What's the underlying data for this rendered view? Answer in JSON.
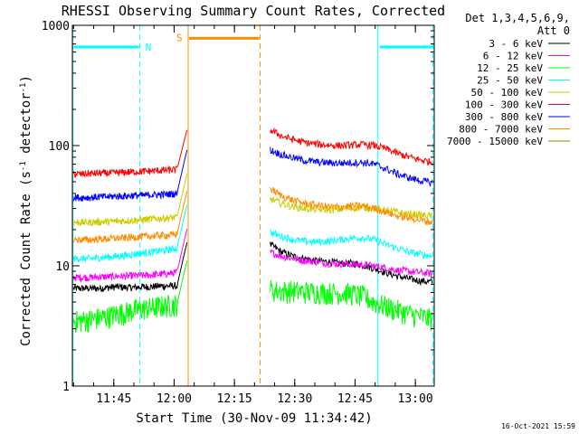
{
  "chart_data": {
    "type": "line",
    "title": "RHESSI Observing Summary Count Rates, Corrected",
    "xlabel": "Start Time (30-Nov-09 11:34:42)",
    "ylabel_main": "Corrected Count Rate (s",
    "ylabel_sup1": "-1",
    "ylabel_mid": " detector",
    "ylabel_sup2": "-1",
    "ylabel_end": ")",
    "y_scale": "log",
    "ylim": [
      1,
      1000
    ],
    "xlim_minutes": [
      0,
      90
    ],
    "y_ticks": [
      {
        "value": 1,
        "label": "1"
      },
      {
        "value": 10,
        "label": "10"
      },
      {
        "value": 100,
        "label": "100"
      },
      {
        "value": 1000,
        "label": "1000"
      }
    ],
    "x_ticks": [
      {
        "minute": 10.3,
        "label": "11:45"
      },
      {
        "minute": 25.3,
        "label": "12:00"
      },
      {
        "minute": 40.3,
        "label": "12:15"
      },
      {
        "minute": 55.3,
        "label": "12:30"
      },
      {
        "minute": 70.3,
        "label": "12:45"
      },
      {
        "minute": 85.3,
        "label": "13:00"
      }
    ],
    "legend_header": [
      "Det 1,3,4,5,6,9,",
      "Att 0"
    ],
    "legend_placement": "right",
    "timestamp": "16-Oct-2021 15:59",
    "series": [
      {
        "name": "3 - 6 keV",
        "color": "#000000",
        "pre": [
          6.5,
          6.5,
          6.5,
          6.5,
          6.6,
          6.7,
          6.6,
          6.6,
          6.7,
          6.7,
          6.8,
          6.8,
          6.8
        ],
        "post": [
          15,
          13,
          12,
          11.5,
          11,
          10.8,
          10.5,
          10.5,
          10.2,
          9.5,
          8.8,
          8.2,
          7.8,
          7.5,
          7.3
        ]
      },
      {
        "name": "6 - 12 keV",
        "color": "#ff00ff",
        "pre": [
          8,
          8,
          8,
          8.1,
          8.1,
          8.2,
          8.2,
          8.3,
          8.3,
          8.4,
          8.5,
          8.6,
          8.8
        ],
        "post": [
          13,
          12,
          11.5,
          11,
          10.8,
          10.5,
          10.4,
          10.3,
          10.2,
          10,
          9.6,
          9.2,
          9,
          8.8,
          8.6
        ]
      },
      {
        "name": "12 - 25 keV",
        "color": "#00ff00",
        "pre": [
          3.5,
          3.5,
          3.6,
          3.7,
          3.8,
          4,
          4.1,
          4.3,
          4.4,
          4.5,
          4.6,
          4.7,
          4.8
        ],
        "post": [
          6.3,
          6.2,
          6.2,
          6.1,
          6.1,
          6,
          6,
          5.9,
          5.6,
          5.0,
          4.6,
          4.3,
          4.0,
          3.8,
          3.6
        ]
      },
      {
        "name": "25 - 50 keV",
        "color": "#00ffff",
        "pre": [
          11.5,
          11.5,
          11.5,
          11.7,
          11.8,
          12,
          12.2,
          12.5,
          12.8,
          13,
          13.3,
          13.6,
          14
        ],
        "post": [
          19,
          17.5,
          16.5,
          16,
          15.8,
          16,
          16.5,
          17,
          17.2,
          16.5,
          15,
          14,
          13,
          12.5,
          12
        ]
      },
      {
        "name": "50 - 100 keV",
        "color": "#cccc00",
        "pre": [
          23,
          23,
          23,
          23.2,
          23.3,
          23.5,
          23.7,
          24,
          24.2,
          24.5,
          24.8,
          25,
          25.3
        ],
        "post": [
          36,
          33,
          31,
          30,
          29.5,
          29.3,
          29.5,
          30,
          30.5,
          30,
          29,
          28,
          27,
          26.5,
          26
        ]
      },
      {
        "name": "100 - 300 keV",
        "color": "#ff0000",
        "pre": [
          58,
          58,
          58.5,
          59,
          59,
          59.5,
          60,
          60.5,
          61,
          61.5,
          62,
          62.5,
          63
        ],
        "post": [
          135,
          120,
          112,
          106,
          103,
          101,
          100,
          101,
          102,
          100,
          94,
          86,
          80,
          76,
          73
        ]
      },
      {
        "name": "300 - 800 keV",
        "color": "#0000ff",
        "pre": [
          37,
          37,
          37,
          37.5,
          37.5,
          38,
          38,
          38.5,
          38.5,
          39,
          39,
          39.5,
          40
        ],
        "post": [
          92,
          84,
          79,
          75,
          73,
          72,
          71.5,
          72,
          72.5,
          70,
          64,
          58,
          54,
          51,
          49
        ]
      },
      {
        "name": "800 - 7000 keV",
        "color": "#ff8c00",
        "pre": [
          16.5,
          16.5,
          16.5,
          16.7,
          16.8,
          17,
          17.1,
          17.3,
          17.5,
          17.7,
          17.9,
          18,
          18.2
        ],
        "post": [
          44,
          38,
          35,
          33,
          32,
          31,
          31,
          31.5,
          31.5,
          30,
          28,
          26,
          25,
          24,
          23
        ]
      },
      {
        "name": "7000 - 15000 keV",
        "color": "#808000",
        "pre": [],
        "post": []
      }
    ],
    "spike": {
      "start_minute": 26,
      "end_minute": 28.5,
      "peak_value": 135
    },
    "night_flag": {
      "label": "N",
      "color": "#00ffff",
      "intervals": [
        [
          0,
          16.8
        ],
        [
          76,
          90
        ]
      ],
      "boundaries_minutes": [
        0.1,
        16.8,
        76.0,
        89.7
      ],
      "level": 660
    },
    "saa_flag": {
      "label": "S",
      "color": "#ff8c00",
      "intervals": [
        [
          28.8,
          46.7
        ]
      ],
      "boundaries_minutes": [
        28.8,
        46.7
      ],
      "level": 780
    },
    "data_gap_minutes": [
      28.5,
      49.2
    ]
  }
}
